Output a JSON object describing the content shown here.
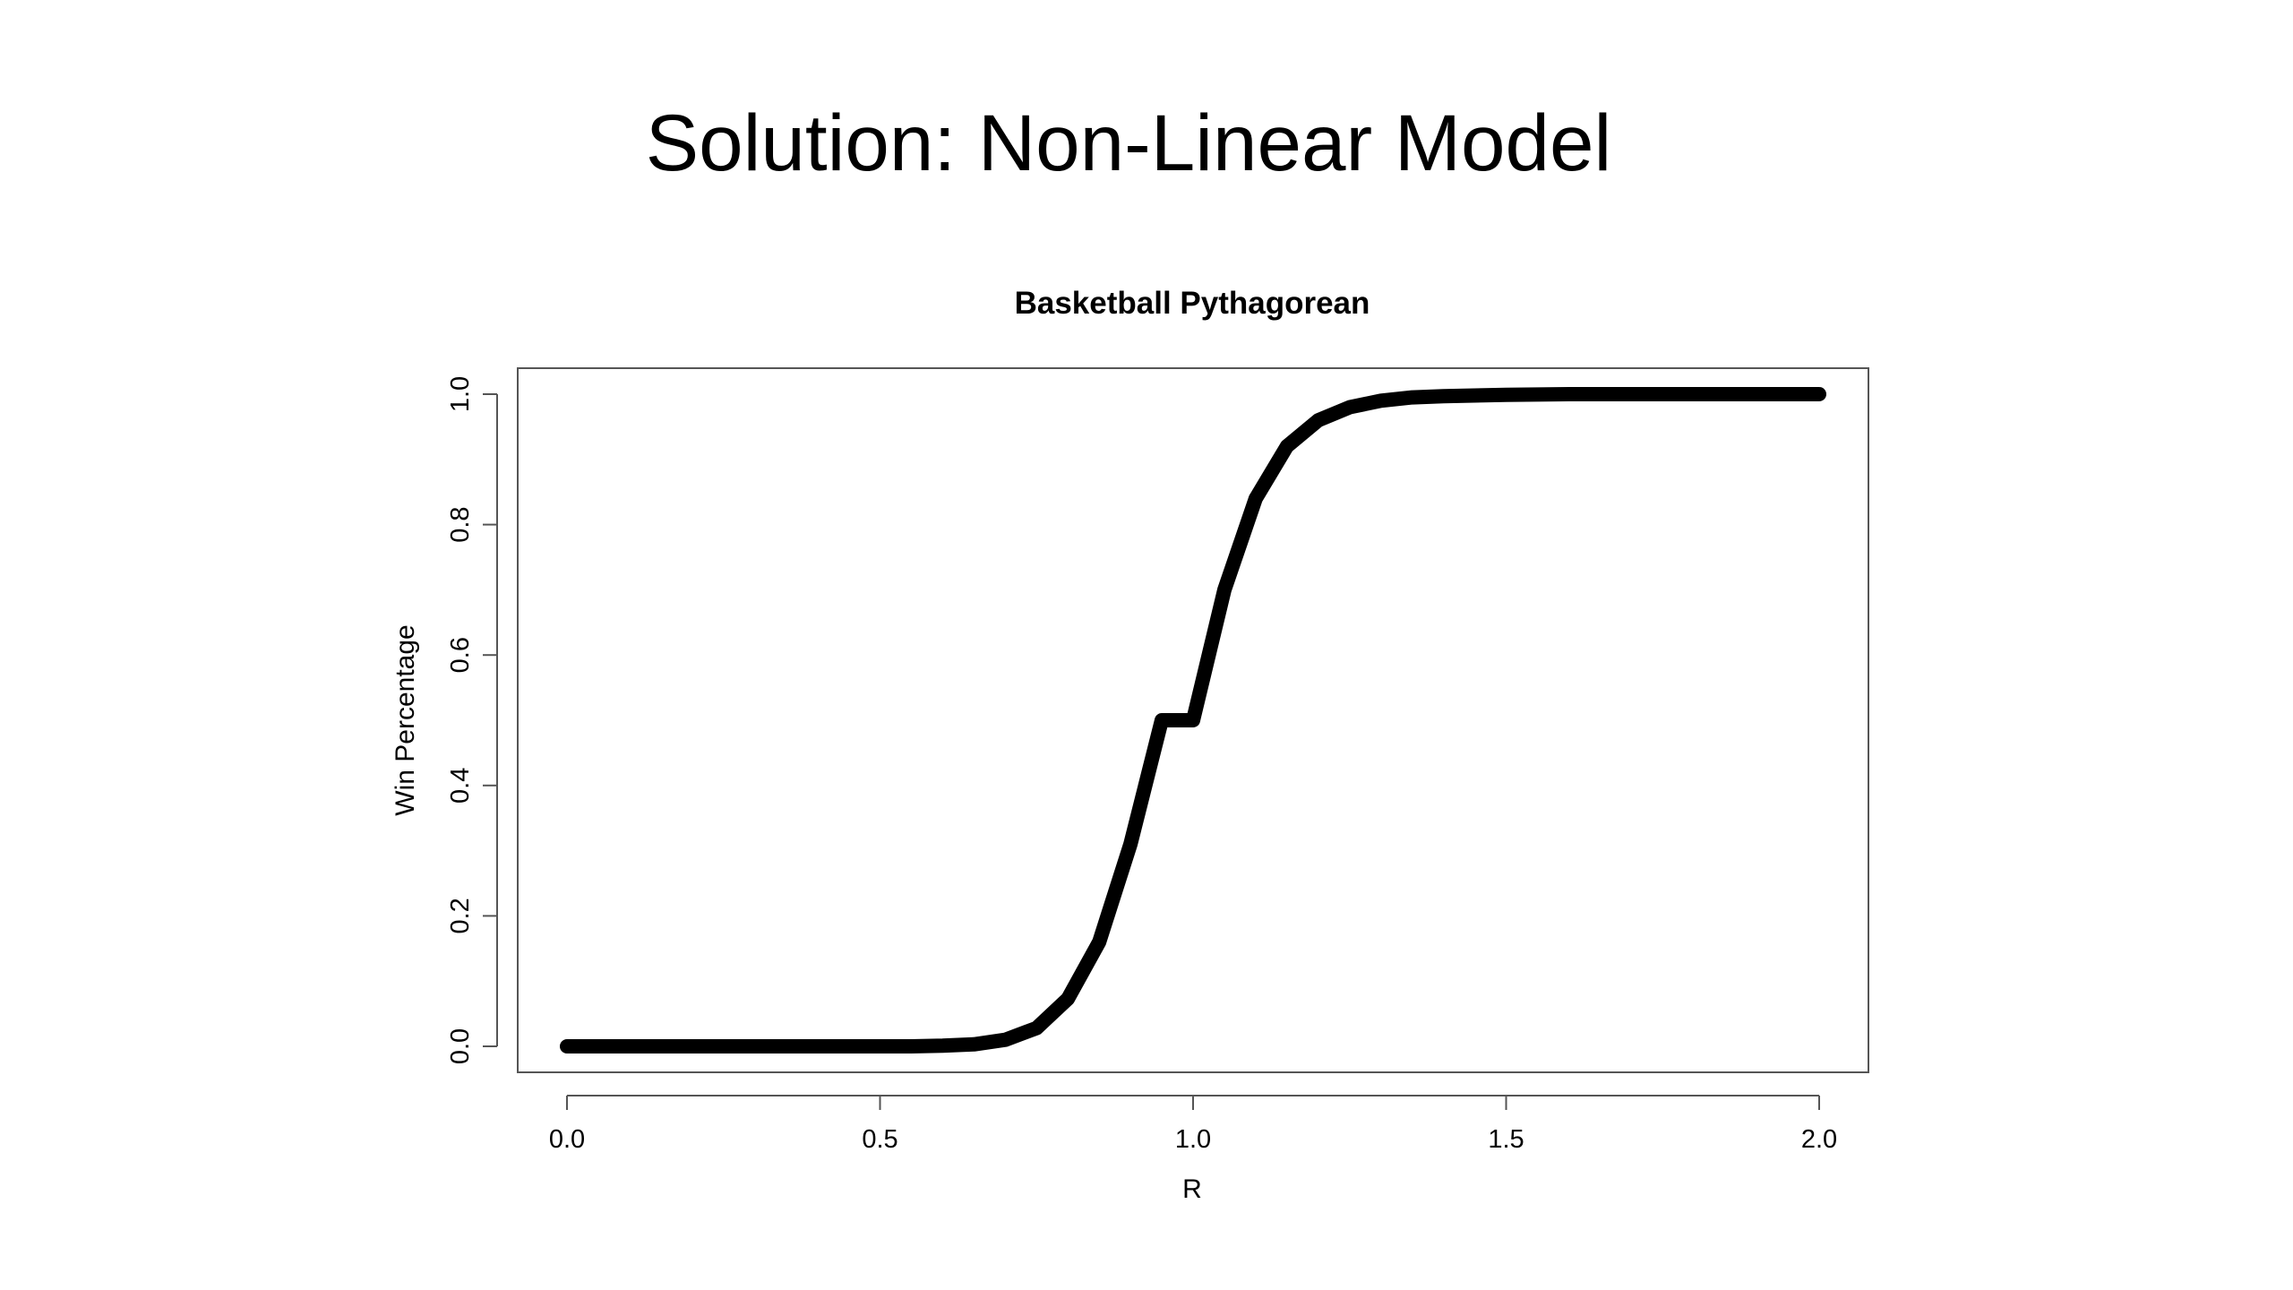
{
  "slide": {
    "title": "Solution: Non-Linear Model"
  },
  "chart_data": {
    "type": "line",
    "title": "Basketball Pythagorean",
    "xlabel": "R",
    "ylabel": "Win Percentage",
    "xlim": [
      0.0,
      2.0
    ],
    "ylim": [
      0.0,
      1.0
    ],
    "xticks": [
      "0.0",
      "0.5",
      "1.0",
      "1.5",
      "2.0"
    ],
    "yticks": [
      "0.0",
      "0.2",
      "0.4",
      "0.6",
      "0.8",
      "1.0"
    ],
    "grid": false,
    "legend": "none",
    "line_color": "#000000",
    "series": [
      {
        "x": [
          0.0,
          0.1,
          0.2,
          0.3,
          0.4,
          0.5,
          0.55,
          0.6,
          0.65,
          0.7,
          0.75,
          0.8,
          0.85,
          0.9,
          0.95,
          1.0,
          1.05,
          1.1,
          1.15,
          1.2,
          1.25,
          1.3,
          1.35,
          1.4,
          1.5,
          1.6,
          1.7,
          1.8,
          1.9,
          2.0
        ],
        "values": [
          0.0,
          0.0,
          0.0,
          0.0,
          0.0,
          0.0,
          0.0,
          0.001,
          0.003,
          0.01,
          0.028,
          0.073,
          0.16,
          0.31,
          0.5,
          0.5,
          0.7,
          0.84,
          0.92,
          0.96,
          0.98,
          0.99,
          0.995,
          0.997,
          0.999,
          1.0,
          1.0,
          1.0,
          1.0,
          1.0
        ]
      }
    ]
  }
}
